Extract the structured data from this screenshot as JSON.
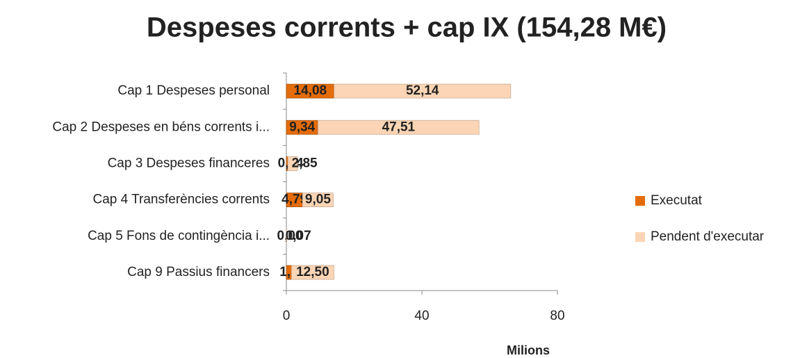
{
  "chart_data": {
    "type": "stacked_barh",
    "title": "Despeses corrents + cap IX (154,28 M€)",
    "xlabel": "Milions",
    "categories": [
      "Cap 1 Despeses personal",
      "Cap 2 Despeses en béns corrents i...",
      "Cap 3 Despeses financeres",
      "Cap 4 Transferències corrents",
      "Cap 5 Fons de contingència i...",
      "Cap 9 Passius financers"
    ],
    "series": [
      {
        "name": "Executat",
        "color": "#e46c0a",
        "values": [
          14.08,
          9.34,
          0.44,
          4.79,
          0.0,
          1.52
        ],
        "value_labels": [
          "14,08",
          "9,34",
          "0,44",
          "4,79",
          "0,00",
          "1,52"
        ]
      },
      {
        "name": "Pendent d'executar",
        "color": "#fbd5b5",
        "values": [
          52.14,
          47.51,
          2.85,
          9.05,
          0.07,
          12.5
        ],
        "value_labels": [
          "52,14",
          "47,51",
          "2,85",
          "9,05",
          "0,07",
          "12,50"
        ]
      }
    ],
    "xlim": [
      0,
      80
    ],
    "xticks": [
      0,
      40,
      80
    ],
    "legend": "right"
  }
}
